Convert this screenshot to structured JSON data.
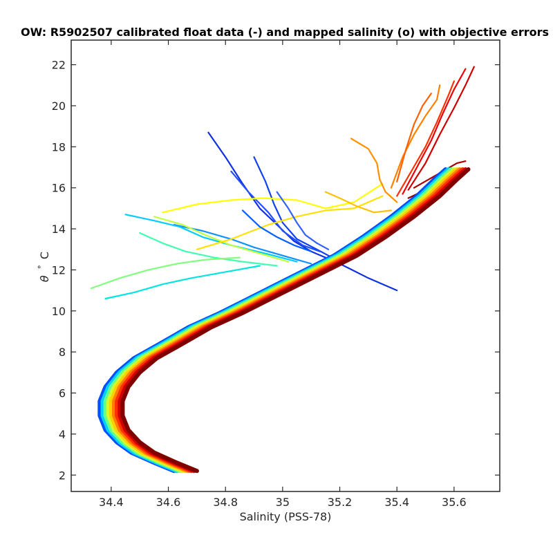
{
  "chart_data": {
    "type": "line",
    "title": "OW: R5902507 calibrated float data (-) and mapped salinity (o) with objective errors",
    "xlabel": "Salinity (PSS-78)",
    "ylabel_symbol": "θ",
    "ylabel_degree": "°",
    "ylabel_unit": "C",
    "xlim": [
      34.26,
      35.76
    ],
    "ylim": [
      1.2,
      23.2
    ],
    "x_ticks": [
      34.4,
      34.6,
      34.8,
      35,
      35.2,
      35.4,
      35.6
    ],
    "x_tick_labels": [
      "34.4",
      "34.6",
      "34.8",
      "35",
      "35.2",
      "35.4",
      "35.6"
    ],
    "y_ticks": [
      2,
      4,
      6,
      8,
      10,
      12,
      14,
      16,
      18,
      20,
      22
    ],
    "y_tick_labels": [
      "2",
      "4",
      "6",
      "8",
      "10",
      "12",
      "14",
      "16",
      "18",
      "20",
      "22"
    ],
    "grid": false,
    "colormap": [
      "#00008f",
      "#0000ff",
      "#00ffff",
      "#ffff00",
      "#ff8000",
      "#ff0000",
      "#800000"
    ],
    "series_description": "Potential temperature vs salinity profiles, colored by profile number (blue = early, dark red = late)",
    "series": [
      {
        "color": "#1030e0",
        "points": [
          [
            34.74,
            18.7
          ],
          [
            34.8,
            17.5
          ],
          [
            34.86,
            16.2
          ],
          [
            34.92,
            15.0
          ],
          [
            34.98,
            14.2
          ],
          [
            35.04,
            13.4
          ],
          [
            35.1,
            12.9
          ],
          [
            35.2,
            12.3
          ],
          [
            35.3,
            11.6
          ],
          [
            35.4,
            11.0
          ]
        ]
      },
      {
        "color": "#1040f0",
        "points": [
          [
            34.9,
            17.5
          ],
          [
            34.94,
            16.3
          ],
          [
            34.97,
            15.2
          ],
          [
            35.0,
            14.3
          ],
          [
            35.05,
            13.5
          ],
          [
            35.12,
            13.0
          ],
          [
            35.2,
            12.4
          ]
        ]
      },
      {
        "color": "#2050ff",
        "points": [
          [
            34.82,
            16.8
          ],
          [
            34.88,
            15.8
          ],
          [
            34.95,
            14.8
          ],
          [
            35.0,
            13.9
          ],
          [
            35.07,
            13.2
          ],
          [
            35.13,
            12.9
          ]
        ]
      },
      {
        "color": "#1090ff",
        "points": [
          [
            34.62,
            14.2
          ],
          [
            34.72,
            13.9
          ],
          [
            34.82,
            13.5
          ],
          [
            34.9,
            13.1
          ],
          [
            35.0,
            12.7
          ],
          [
            35.1,
            12.3
          ]
        ]
      },
      {
        "color": "#00ccff",
        "points": [
          [
            34.45,
            14.7
          ],
          [
            34.55,
            14.4
          ],
          [
            34.64,
            14.1
          ],
          [
            34.72,
            13.6
          ],
          [
            34.82,
            13.2
          ],
          [
            34.94,
            12.8
          ],
          [
            35.05,
            12.4
          ]
        ]
      },
      {
        "color": "#00e5e0",
        "points": [
          [
            34.38,
            10.6
          ],
          [
            34.48,
            10.9
          ],
          [
            34.58,
            11.3
          ],
          [
            34.68,
            11.6
          ],
          [
            34.8,
            11.9
          ],
          [
            34.92,
            12.2
          ]
        ]
      },
      {
        "color": "#40ffb0",
        "points": [
          [
            34.5,
            13.8
          ],
          [
            34.58,
            13.3
          ],
          [
            34.66,
            12.9
          ],
          [
            34.76,
            12.6
          ],
          [
            34.86,
            12.4
          ],
          [
            34.98,
            12.2
          ]
        ]
      },
      {
        "color": "#80ff80",
        "points": [
          [
            34.33,
            11.1
          ],
          [
            34.43,
            11.6
          ],
          [
            34.53,
            12.0
          ],
          [
            34.63,
            12.3
          ],
          [
            34.73,
            12.5
          ],
          [
            34.85,
            12.6
          ]
        ]
      },
      {
        "color": "#c0ff40",
        "points": [
          [
            34.55,
            14.6
          ],
          [
            34.65,
            14.2
          ],
          [
            34.73,
            13.7
          ],
          [
            34.82,
            13.2
          ],
          [
            34.92,
            12.8
          ],
          [
            35.02,
            12.4
          ]
        ]
      },
      {
        "color": "#ffff00",
        "points": [
          [
            34.58,
            14.8
          ],
          [
            34.7,
            15.2
          ],
          [
            34.82,
            15.4
          ],
          [
            34.93,
            15.5
          ],
          [
            35.05,
            15.4
          ],
          [
            35.15,
            15.0
          ],
          [
            35.25,
            15.3
          ],
          [
            35.35,
            16.2
          ]
        ]
      },
      {
        "color": "#ffe000",
        "points": [
          [
            34.7,
            13.0
          ],
          [
            34.82,
            13.5
          ],
          [
            34.95,
            14.2
          ],
          [
            35.05,
            14.6
          ],
          [
            35.15,
            14.9
          ],
          [
            35.25,
            15.0
          ],
          [
            35.35,
            15.6
          ]
        ]
      },
      {
        "color": "#ffc000",
        "points": [
          [
            35.15,
            15.8
          ],
          [
            35.2,
            15.5
          ],
          [
            35.26,
            15.1
          ],
          [
            35.32,
            14.8
          ],
          [
            35.38,
            14.9
          ]
        ]
      },
      {
        "color": "#ff9000",
        "points": [
          [
            35.24,
            18.4
          ],
          [
            35.3,
            17.9
          ],
          [
            35.33,
            17.2
          ],
          [
            35.34,
            16.4
          ],
          [
            35.36,
            15.8
          ],
          [
            35.4,
            15.3
          ]
        ]
      },
      {
        "color": "#ff8000",
        "points": [
          [
            35.38,
            16.0
          ],
          [
            35.42,
            17.5
          ],
          [
            35.46,
            18.6
          ],
          [
            35.5,
            19.5
          ],
          [
            35.54,
            20.3
          ],
          [
            35.55,
            21.0
          ]
        ]
      },
      {
        "color": "#ff6000",
        "points": [
          [
            35.4,
            16.3
          ],
          [
            35.43,
            17.8
          ],
          [
            35.46,
            19.1
          ],
          [
            35.49,
            20.0
          ],
          [
            35.52,
            20.6
          ]
        ]
      },
      {
        "color": "#ff3000",
        "points": [
          [
            35.4,
            15.6
          ],
          [
            35.45,
            16.8
          ],
          [
            35.5,
            18.0
          ],
          [
            35.54,
            19.2
          ],
          [
            35.58,
            20.5
          ],
          [
            35.6,
            21.2
          ]
        ]
      },
      {
        "color": "#ee0000",
        "points": [
          [
            35.42,
            15.7
          ],
          [
            35.47,
            17.0
          ],
          [
            35.52,
            18.3
          ],
          [
            35.56,
            19.6
          ],
          [
            35.6,
            20.8
          ],
          [
            35.64,
            21.8
          ]
        ]
      },
      {
        "color": "#cc0000",
        "points": [
          [
            35.44,
            15.9
          ],
          [
            35.5,
            17.2
          ],
          [
            35.55,
            18.6
          ],
          [
            35.6,
            19.9
          ],
          [
            35.64,
            21.0
          ],
          [
            35.67,
            21.9
          ]
        ]
      },
      {
        "color": "#a80000",
        "points": [
          [
            35.46,
            16.0
          ],
          [
            35.51,
            16.4
          ],
          [
            35.56,
            16.8
          ],
          [
            35.61,
            17.2
          ],
          [
            35.64,
            17.3
          ]
        ]
      },
      {
        "color": "#900000",
        "points": [
          [
            35.44,
            15.5
          ],
          [
            35.5,
            15.9
          ],
          [
            35.56,
            16.3
          ],
          [
            35.6,
            16.8
          ]
        ]
      },
      {
        "color": "#3060ff",
        "points": [
          [
            34.98,
            15.8
          ],
          [
            35.02,
            15.0
          ],
          [
            35.05,
            14.3
          ],
          [
            35.08,
            13.7
          ],
          [
            35.12,
            13.3
          ],
          [
            35.16,
            13.0
          ]
        ]
      },
      {
        "color": "#0060ff",
        "points": [
          [
            34.86,
            14.9
          ],
          [
            34.92,
            14.1
          ],
          [
            34.98,
            13.6
          ],
          [
            35.04,
            13.2
          ],
          [
            35.1,
            12.9
          ]
        ]
      }
    ],
    "main_band": {
      "points": [
        [
          34.67,
          2.2
        ],
        [
          34.6,
          2.6
        ],
        [
          34.52,
          3.1
        ],
        [
          34.47,
          3.6
        ],
        [
          34.43,
          4.2
        ],
        [
          34.41,
          4.9
        ],
        [
          34.41,
          5.6
        ],
        [
          34.43,
          6.3
        ],
        [
          34.47,
          7.0
        ],
        [
          34.53,
          7.7
        ],
        [
          34.62,
          8.4
        ],
        [
          34.72,
          9.2
        ],
        [
          34.83,
          9.9
        ],
        [
          34.93,
          10.6
        ],
        [
          35.03,
          11.3
        ],
        [
          35.13,
          12.0
        ],
        [
          35.23,
          12.7
        ],
        [
          35.33,
          13.6
        ],
        [
          35.43,
          14.6
        ],
        [
          35.52,
          15.6
        ],
        [
          35.58,
          16.4
        ],
        [
          35.62,
          16.9
        ]
      ],
      "layers": [
        {
          "color": "#0050ff",
          "offset": -0.05
        },
        {
          "color": "#00d0ff",
          "offset": -0.04
        },
        {
          "color": "#60ff90",
          "offset": -0.03
        },
        {
          "color": "#d0ff30",
          "offset": -0.02
        },
        {
          "color": "#ffd000",
          "offset": -0.01
        },
        {
          "color": "#ff8000",
          "offset": 0.0
        },
        {
          "color": "#ff3000",
          "offset": 0.01
        },
        {
          "color": "#d00000",
          "offset": 0.02
        },
        {
          "color": "#800000",
          "offset": 0.03
        }
      ]
    }
  }
}
